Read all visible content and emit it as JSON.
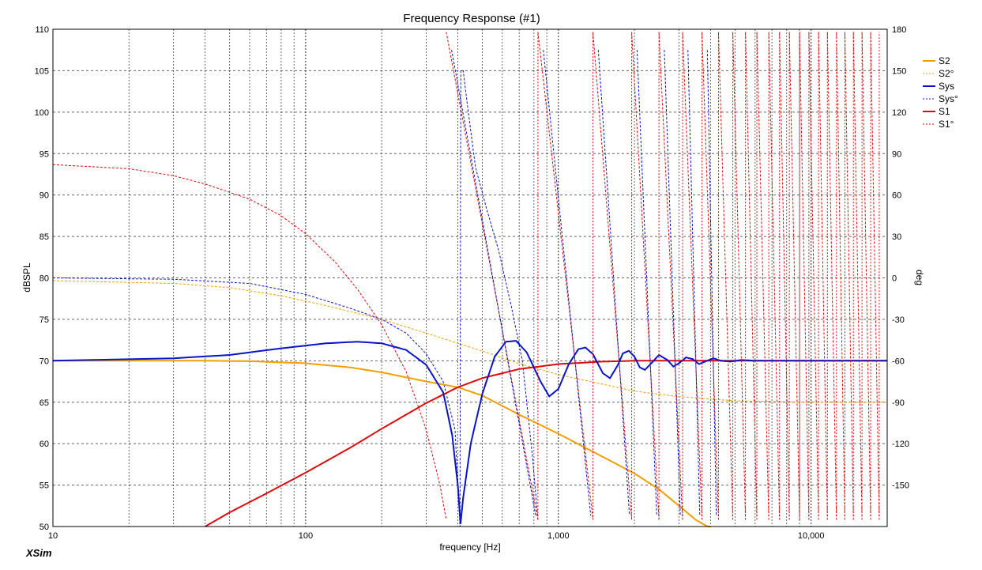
{
  "app": {
    "name": "XSim"
  },
  "chart_data": {
    "type": "line",
    "title": "Frequency Response (#1)",
    "xlabel": "frequency [Hz]",
    "ylabel": "dBSPL",
    "y2label": "deg",
    "xscale": "log",
    "xlim": [
      10,
      20000
    ],
    "ylim": [
      50,
      110
    ],
    "y2lim": [
      -180,
      180
    ],
    "x_ticks": [
      {
        "value": 10,
        "label": "10"
      },
      {
        "value": 100,
        "label": "100"
      },
      {
        "value": 1000,
        "label": "1,000"
      },
      {
        "value": 10000,
        "label": "10,000"
      }
    ],
    "y_ticks": [
      "50",
      "55",
      "60",
      "65",
      "70",
      "75",
      "80",
      "85",
      "90",
      "95",
      "100",
      "105",
      "110"
    ],
    "y2_ticks": [
      "-150",
      "-120",
      "-90",
      "-60",
      "-30",
      "0",
      "30",
      "60",
      "90",
      "120",
      "150",
      "180"
    ],
    "grid": true,
    "legend_position": "right",
    "colors": {
      "title": "#1a1adc",
      "S2": "#f0a000",
      "Sys": "#0a14c8",
      "S1": "#dc0a0a",
      "grid": "#000000"
    },
    "series": [
      {
        "name": "S2",
        "axis": "left",
        "style": "solid",
        "color": "#f0a000",
        "points": [
          [
            10,
            70
          ],
          [
            40,
            70
          ],
          [
            60,
            69.95
          ],
          [
            100,
            69.7
          ],
          [
            150,
            69.2
          ],
          [
            200,
            68.6
          ],
          [
            300,
            67.5
          ],
          [
            400,
            66.8
          ],
          [
            500,
            65.8
          ],
          [
            700,
            63.5
          ],
          [
            1000,
            61.2
          ],
          [
            1500,
            58.4
          ],
          [
            2000,
            56.4
          ],
          [
            2500,
            54.5
          ],
          [
            3000,
            52.5
          ],
          [
            3500,
            50.8
          ],
          [
            4000,
            49.8
          ]
        ]
      },
      {
        "name": "S2°",
        "axis": "right",
        "style": "dashed",
        "color": "#f0a000",
        "points": [
          [
            10,
            -2
          ],
          [
            30,
            -4
          ],
          [
            50,
            -7
          ],
          [
            80,
            -13
          ],
          [
            120,
            -20
          ],
          [
            200,
            -30
          ],
          [
            300,
            -40
          ],
          [
            500,
            -53
          ],
          [
            700,
            -62
          ],
          [
            1000,
            -70
          ],
          [
            1500,
            -77
          ],
          [
            2000,
            -82
          ],
          [
            3000,
            -86
          ],
          [
            5000,
            -89
          ],
          [
            10000,
            -90
          ],
          [
            20000,
            -90
          ]
        ]
      },
      {
        "name": "Sys",
        "axis": "left",
        "style": "solid",
        "color": "#0a14c8",
        "points": [
          [
            10,
            70
          ],
          [
            30,
            70.3
          ],
          [
            50,
            70.7
          ],
          [
            80,
            71.5
          ],
          [
            120,
            72.1
          ],
          [
            160,
            72.3
          ],
          [
            200,
            72.1
          ],
          [
            250,
            71.3
          ],
          [
            300,
            69.5
          ],
          [
            350,
            66.2
          ],
          [
            380,
            61
          ],
          [
            400,
            55
          ],
          [
            410,
            50.3
          ],
          [
            420,
            53.5
          ],
          [
            450,
            60
          ],
          [
            500,
            66
          ],
          [
            560,
            70.5
          ],
          [
            620,
            72.3
          ],
          [
            680,
            72.4
          ],
          [
            750,
            71
          ],
          [
            850,
            67.5
          ],
          [
            920,
            65.7
          ],
          [
            1000,
            66.6
          ],
          [
            1100,
            69.6
          ],
          [
            1200,
            71.4
          ],
          [
            1280,
            71.6
          ],
          [
            1370,
            70.8
          ],
          [
            1500,
            68.5
          ],
          [
            1600,
            67.9
          ],
          [
            1720,
            69.5
          ],
          [
            1800,
            70.9
          ],
          [
            1900,
            71.2
          ],
          [
            2000,
            70.5
          ],
          [
            2100,
            69.2
          ],
          [
            2200,
            68.9
          ],
          [
            2350,
            69.8
          ],
          [
            2500,
            70.7
          ],
          [
            2700,
            70.1
          ],
          [
            2850,
            69.3
          ],
          [
            3000,
            69.7
          ],
          [
            3200,
            70.4
          ],
          [
            3400,
            70.2
          ],
          [
            3600,
            69.6
          ],
          [
            3800,
            69.9
          ],
          [
            4100,
            70.3
          ],
          [
            4400,
            70
          ],
          [
            4800,
            69.9
          ],
          [
            5300,
            70.1
          ],
          [
            6000,
            70
          ],
          [
            8000,
            70
          ],
          [
            20000,
            70
          ]
        ]
      },
      {
        "name": "Sys°",
        "axis": "right",
        "style": "dashed",
        "color": "#0a14c8",
        "points": [
          [
            10,
            0
          ],
          [
            30,
            -1
          ],
          [
            60,
            -4
          ],
          [
            100,
            -12
          ],
          [
            150,
            -22
          ],
          [
            200,
            -30
          ],
          [
            250,
            -40
          ],
          [
            300,
            -55
          ],
          [
            350,
            -75
          ],
          [
            390,
            -110
          ],
          [
            408,
            -180
          ],
          [
            411,
            150
          ],
          [
            420,
            150
          ],
          [
            440,
            120
          ],
          [
            470,
            80
          ],
          [
            520,
            50
          ],
          [
            580,
            20
          ],
          [
            650,
            -20
          ],
          [
            720,
            -60
          ],
          [
            790,
            -130
          ],
          [
            830,
            -175
          ]
        ]
      },
      {
        "name": "S1",
        "axis": "left",
        "style": "solid",
        "color": "#dc0a0a",
        "points": [
          [
            40,
            50
          ],
          [
            50,
            51.7
          ],
          [
            70,
            54
          ],
          [
            100,
            56.5
          ],
          [
            150,
            59.5
          ],
          [
            200,
            61.8
          ],
          [
            300,
            64.9
          ],
          [
            400,
            66.8
          ],
          [
            500,
            67.9
          ],
          [
            700,
            69
          ],
          [
            1000,
            69.6
          ],
          [
            1500,
            69.9
          ],
          [
            2000,
            70
          ],
          [
            5000,
            70
          ],
          [
            20000,
            70
          ]
        ]
      },
      {
        "name": "S1°",
        "axis": "right",
        "style": "dashed",
        "color": "#dc0a0a",
        "points": [
          [
            10,
            82
          ],
          [
            20,
            79
          ],
          [
            30,
            74
          ],
          [
            40,
            68
          ],
          [
            60,
            57
          ],
          [
            80,
            45
          ],
          [
            100,
            32
          ],
          [
            130,
            12
          ],
          [
            160,
            -8
          ],
          [
            200,
            -34
          ],
          [
            250,
            -68
          ],
          [
            300,
            -110
          ],
          [
            340,
            -150
          ],
          [
            360,
            -175
          ]
        ]
      }
    ],
    "phase_wrap_frequencies": [
      360,
      830,
      1370,
      1950,
      2500,
      3100,
      3700,
      4300,
      4900,
      5500,
      6100,
      6800,
      7500,
      8200,
      9000,
      9800,
      10700,
      11600,
      12600,
      13600,
      14700,
      15900,
      17200,
      18600
    ]
  },
  "legend": [
    {
      "label": "S2",
      "color": "#f0a000",
      "style": "solid"
    },
    {
      "label": "S2°",
      "color": "#f0a000",
      "style": "dashed"
    },
    {
      "label": "Sys",
      "color": "#0a14c8",
      "style": "solid"
    },
    {
      "label": "Sys°",
      "color": "#0a14c8",
      "style": "dashed"
    },
    {
      "label": "S1",
      "color": "#dc0a0a",
      "style": "solid"
    },
    {
      "label": "S1°",
      "color": "#dc0a0a",
      "style": "dashed"
    }
  ]
}
